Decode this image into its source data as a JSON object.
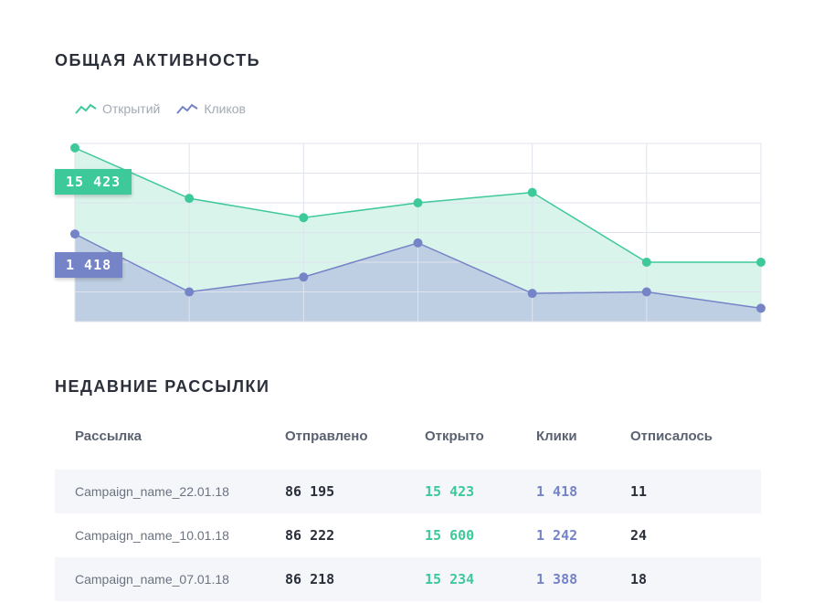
{
  "activity": {
    "title": "ОБЩАЯ АКТИВНОСТЬ",
    "legend": [
      {
        "label": "Открытий",
        "color": "#3ec99a",
        "icon": "trend-line-icon"
      },
      {
        "label": "Кликов",
        "color": "#7583c7",
        "icon": "trend-line-icon"
      }
    ],
    "badges": {
      "opens": "15 423",
      "clicks": "1 418"
    }
  },
  "chart_data": {
    "type": "area",
    "x": [
      1,
      2,
      3,
      4,
      5,
      6,
      7
    ],
    "ylim": [
      0,
      6
    ],
    "grid": true,
    "series": [
      {
        "name": "Открытий",
        "color": "#3ec99a",
        "fill": "#d9f4ea",
        "values": [
          5.85,
          4.15,
          3.5,
          4.0,
          4.35,
          2.0,
          2.0
        ]
      },
      {
        "name": "Кликов",
        "color": "#7583c7",
        "fill": "#bfcfe3",
        "values": [
          2.95,
          1.0,
          1.5,
          2.65,
          0.95,
          1.0,
          0.45
        ]
      }
    ]
  },
  "recent": {
    "title": "НЕДАВНИЕ РАССЫЛКИ",
    "headers": [
      "Рассылка",
      "Отправлено",
      "Открыто",
      "Клики",
      "Отписалось"
    ],
    "rows": [
      {
        "name": "Campaign_name_22.01.18",
        "sent": "86 195",
        "opened": "15 423",
        "clicks": "1 418",
        "unsub": "11"
      },
      {
        "name": "Campaign_name_10.01.18",
        "sent": "86 222",
        "opened": "15 600",
        "clicks": "1 242",
        "unsub": "24"
      },
      {
        "name": "Campaign_name_07.01.18",
        "sent": "86 218",
        "opened": "15 234",
        "clicks": "1 388",
        "unsub": "18"
      }
    ]
  }
}
